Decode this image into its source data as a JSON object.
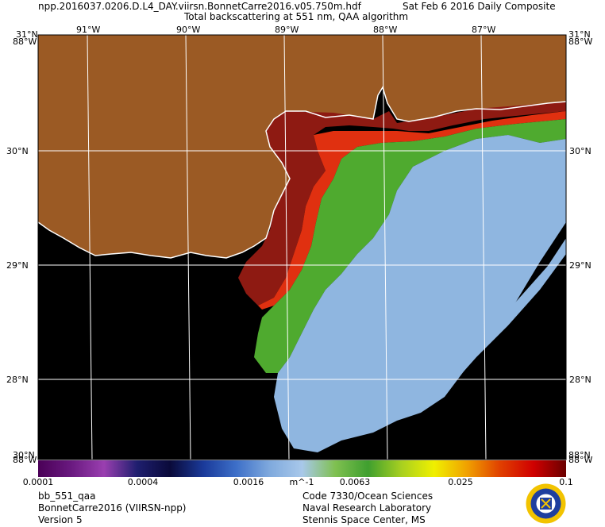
{
  "header": {
    "filename": "npp.2016037.0206.D.L4_DAY.viirsn.BonnetCarre2016.v05.750m.hdf",
    "date": "Sat Feb  6 2016 Daily Composite",
    "subtitle": "Total backscattering at 551 nm, QAA algorithm"
  },
  "map": {
    "lat_range": [
      27.5,
      31.0
    ],
    "lon_range": [
      -91.5,
      -86.3
    ],
    "lon_labels": [
      "91°W",
      "90°W",
      "89°W",
      "88°W",
      "87°W"
    ],
    "lat_labels": [
      "30°N",
      "29°N",
      "28°N"
    ],
    "corner_labels": {
      "top_left_lat": "31°N",
      "top_left_lon": "88°W",
      "top_right_lat": "31°N",
      "top_right_lon": "88°W",
      "bottom_left_lat": "30°N",
      "bottom_left_lon": "88°W",
      "bottom_right_lat": "88°N",
      "bottom_right_lon": "88°W"
    },
    "colors": {
      "land": "#9b5a24",
      "no_data": "#000000",
      "grid": "#ffffff",
      "coastline": "#ffffff",
      "low_water": "#8fb6e0",
      "mid_water": "#4faa2f",
      "high_water": "#e03010",
      "highest": "#8e1a12"
    }
  },
  "colorbar": {
    "scale": "log",
    "range": [
      0.0001,
      0.1
    ],
    "unit": "m^-1",
    "tick_labels": [
      "0.0001",
      "0.0004",
      "0.0016",
      "0.0063",
      "0.025",
      "0.1"
    ],
    "colors": [
      "#4a0057",
      "#6a1a80",
      "#9a3fb0",
      "#1e1e6e",
      "#0a0a3a",
      "#1a3a9a",
      "#3d6fc8",
      "#7fa9dd",
      "#a8c8ea",
      "#7fc050",
      "#3f9f2f",
      "#a8d020",
      "#f0f000",
      "#f0a000",
      "#e04000",
      "#d00000",
      "#6a0000"
    ]
  },
  "footer": {
    "left": [
      "bb_551_qaa",
      "BonnetCarre2016 (VIIRSN-npp)",
      "Version 5"
    ],
    "right": [
      "Code 7330/Ocean Sciences",
      "Naval Research Laboratory",
      "Stennis Space Center, MS"
    ]
  },
  "logo": {
    "name": "nrl-seal"
  }
}
